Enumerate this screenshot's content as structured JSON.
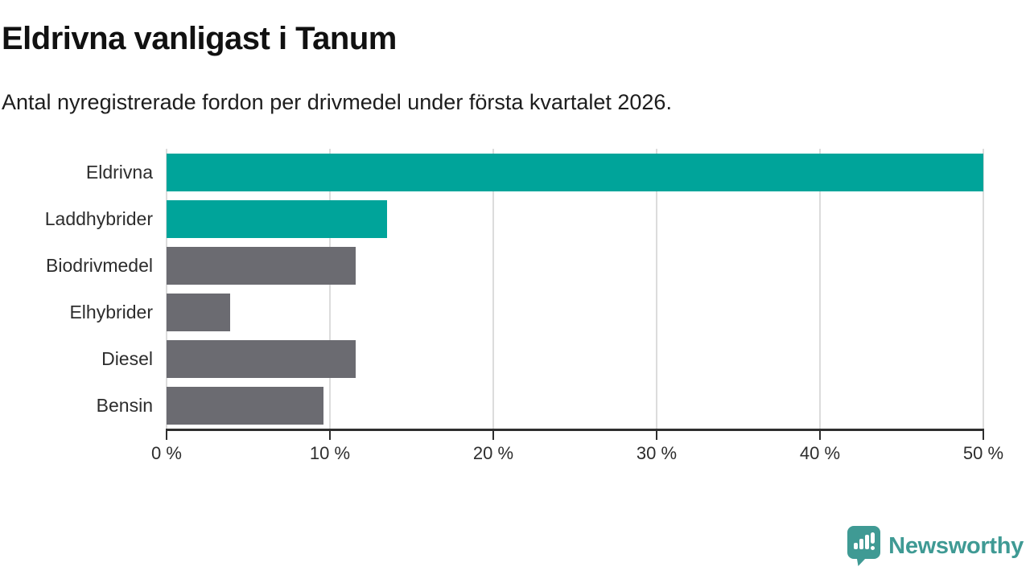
{
  "header": {
    "title": "Eldrivna vanligast i Tanum",
    "subtitle": "Antal nyregistrerade fordon per drivmedel under första kvartalet 2026."
  },
  "chart_data": {
    "type": "bar",
    "orientation": "horizontal",
    "title": "Eldrivna vanligast i Tanum",
    "subtitle": "Antal nyregistrerade fordon per drivmedel under första kvartalet 2026.",
    "categories": [
      "Eldrivna",
      "Laddhybrider",
      "Biodrivmedel",
      "Elhybrider",
      "Diesel",
      "Bensin"
    ],
    "values": [
      50.0,
      13.5,
      11.6,
      3.9,
      11.6,
      9.6
    ],
    "bar_colors": [
      "#00a49a",
      "#00a49a",
      "#6b6b71",
      "#6b6b71",
      "#6b6b71",
      "#6b6b71"
    ],
    "unit": "%",
    "xlim": [
      0,
      50
    ],
    "xticks": [
      0,
      10,
      20,
      30,
      40,
      50
    ],
    "xtick_labels": [
      "0 %",
      "10 %",
      "20 %",
      "30 %",
      "40 %",
      "50 %"
    ],
    "grid": true,
    "legend": false
  },
  "colors": {
    "accent_teal": "#00a49a",
    "bar_gray": "#6b6b71",
    "gridline": "#dcdcdc",
    "axis": "#2e2e2e",
    "logo_teal": "#3f9a94"
  },
  "branding": {
    "logo_text": "Newsworthy",
    "logo_icon": "newsworthy-speech-bubble-chart-icon"
  }
}
